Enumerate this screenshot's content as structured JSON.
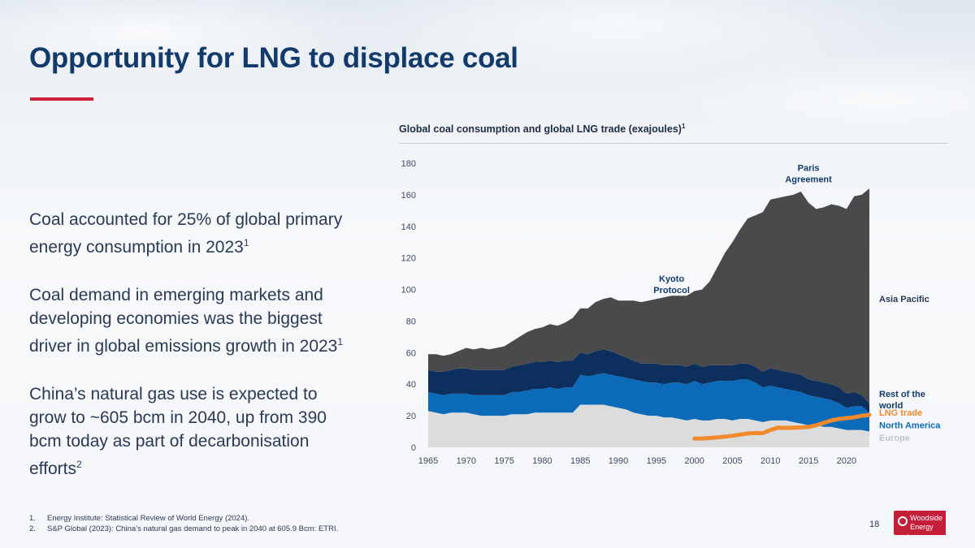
{
  "slide": {
    "title": "Opportunity for LNG to displace coal",
    "page_number": "18",
    "logo_text_1": "Woodside",
    "logo_text_2": "Energy"
  },
  "bullets": [
    {
      "text": "Coal accounted for 25% of global primary energy consumption in 2023",
      "sup": "1"
    },
    {
      "text": "Coal demand in emerging markets and developing economies was the biggest driver in global emissions growth in 2023",
      "sup": "1"
    },
    {
      "text": "China’s natural gas use is expected to grow to ~605 bcm in 2040, up from 390 bcm today as part of decarbonisation efforts",
      "sup": "2"
    }
  ],
  "footnotes": [
    {
      "num": "1.",
      "text": "Energy Institute: Statistical Review of World Energy (2024)."
    },
    {
      "num": "2.",
      "text": "S&P Global (2023): China’s natural gas demand to peak in 2040 at 605.9 Bcm: ETRI."
    }
  ],
  "colors": {
    "europe": "#dcdcdc",
    "north_america": "#0b6bb8",
    "rest_of_world": "#0d2f5e",
    "asia_pacific": "#4a4a4c",
    "lng_trade": "#f08a2c",
    "title": "#123a6b",
    "accent_red": "#d0203a"
  },
  "chart_data": {
    "type": "area",
    "title": "Global coal consumption and global LNG trade (exajoules)",
    "title_sup": "1",
    "stacked": true,
    "x": [
      1965,
      1966,
      1967,
      1968,
      1969,
      1970,
      1971,
      1972,
      1973,
      1974,
      1975,
      1976,
      1977,
      1978,
      1979,
      1980,
      1981,
      1982,
      1983,
      1984,
      1985,
      1986,
      1987,
      1988,
      1989,
      1990,
      1991,
      1992,
      1993,
      1994,
      1995,
      1996,
      1997,
      1998,
      1999,
      2000,
      2001,
      2002,
      2003,
      2004,
      2005,
      2006,
      2007,
      2008,
      2009,
      2010,
      2011,
      2012,
      2013,
      2014,
      2015,
      2016,
      2017,
      2018,
      2019,
      2020,
      2021,
      2022,
      2023
    ],
    "xticks": [
      1965,
      1970,
      1975,
      1980,
      1985,
      1990,
      1995,
      2000,
      2005,
      2010,
      2015,
      2020
    ],
    "yticks": [
      0,
      20,
      40,
      60,
      80,
      100,
      120,
      140,
      160,
      180
    ],
    "ylim": [
      0,
      180
    ],
    "series": [
      {
        "name": "Europe",
        "color": "#dcdcdc",
        "values": [
          23,
          22,
          21,
          22,
          22,
          22,
          21,
          20,
          20,
          20,
          20,
          21,
          21,
          21,
          22,
          22,
          22,
          22,
          22,
          22,
          27,
          27,
          27,
          27,
          26,
          25,
          24,
          22,
          21,
          20,
          20,
          19,
          19,
          18,
          17,
          18,
          17,
          17,
          18,
          18,
          17,
          18,
          18,
          17,
          16,
          17,
          17,
          17,
          16,
          15,
          14,
          14,
          13,
          13,
          12,
          11,
          11,
          11,
          10
        ]
      },
      {
        "name": "North America",
        "color": "#0b6bb8",
        "values": [
          12,
          12,
          12,
          12,
          12,
          12,
          12,
          13,
          13,
          13,
          13,
          14,
          14,
          15,
          15,
          15,
          16,
          15,
          16,
          16,
          19,
          18,
          19,
          20,
          20,
          20,
          20,
          21,
          21,
          21,
          21,
          21,
          22,
          23,
          23,
          24,
          23,
          24,
          24,
          24,
          25,
          25,
          25,
          24,
          22,
          22,
          21,
          20,
          20,
          20,
          19,
          18,
          18,
          17,
          16,
          14,
          15,
          15,
          12
        ]
      },
      {
        "name": "Rest of the world",
        "color": "#0d2f5e",
        "values": [
          14,
          14,
          15,
          15,
          16,
          16,
          16,
          16,
          16,
          16,
          16,
          16,
          17,
          17,
          17,
          17,
          17,
          17,
          17,
          17,
          14,
          14,
          15,
          15,
          15,
          14,
          13,
          12,
          11,
          12,
          12,
          12,
          11,
          11,
          11,
          11,
          11,
          11,
          10,
          10,
          10,
          10,
          10,
          10,
          10,
          11,
          11,
          11,
          11,
          11,
          10,
          10,
          10,
          10,
          10,
          9,
          9,
          7,
          6
        ]
      },
      {
        "name": "Asia Pacific",
        "color": "#4a4a4c",
        "values": [
          10,
          11,
          10,
          10,
          11,
          13,
          13,
          14,
          13,
          14,
          15,
          16,
          18,
          20,
          21,
          22,
          23,
          23,
          24,
          27,
          28,
          29,
          31,
          32,
          34,
          34,
          36,
          38,
          39,
          40,
          41,
          43,
          44,
          44,
          45,
          46,
          49,
          53,
          62,
          71,
          78,
          85,
          92,
          96,
          101,
          107,
          109,
          111,
          113,
          116,
          112,
          109,
          111,
          114,
          115,
          117,
          124,
          127,
          136
        ]
      }
    ],
    "line_series": [
      {
        "name": "LNG trade",
        "color": "#f08a2c",
        "x": [
          2000,
          2001,
          2002,
          2003,
          2004,
          2005,
          2006,
          2007,
          2008,
          2009,
          2010,
          2011,
          2012,
          2013,
          2014,
          2015,
          2016,
          2017,
          2018,
          2019,
          2020,
          2021,
          2022,
          2023
        ],
        "values": [
          5.5,
          5.6,
          5.9,
          6.3,
          6.8,
          7.3,
          8.1,
          8.8,
          9.0,
          9.0,
          11,
          12.5,
          12.3,
          12.4,
          12.6,
          12.9,
          14,
          15.5,
          17,
          18,
          18.5,
          19,
          20,
          20.5
        ]
      }
    ],
    "annotations": [
      {
        "text": "Paris\nAgreement",
        "x": 2015,
        "y": 175
      },
      {
        "text": "Kyoto\nProtocol",
        "x": 1997,
        "y": 105
      }
    ],
    "legend_labels": [
      {
        "name": "Asia Pacific",
        "y": 92
      },
      {
        "name": "Rest of the world",
        "y": 32
      },
      {
        "name": "LNG trade",
        "y": 20
      },
      {
        "name": "North America",
        "y": 12
      },
      {
        "name": "Europe",
        "y": 4
      }
    ]
  }
}
